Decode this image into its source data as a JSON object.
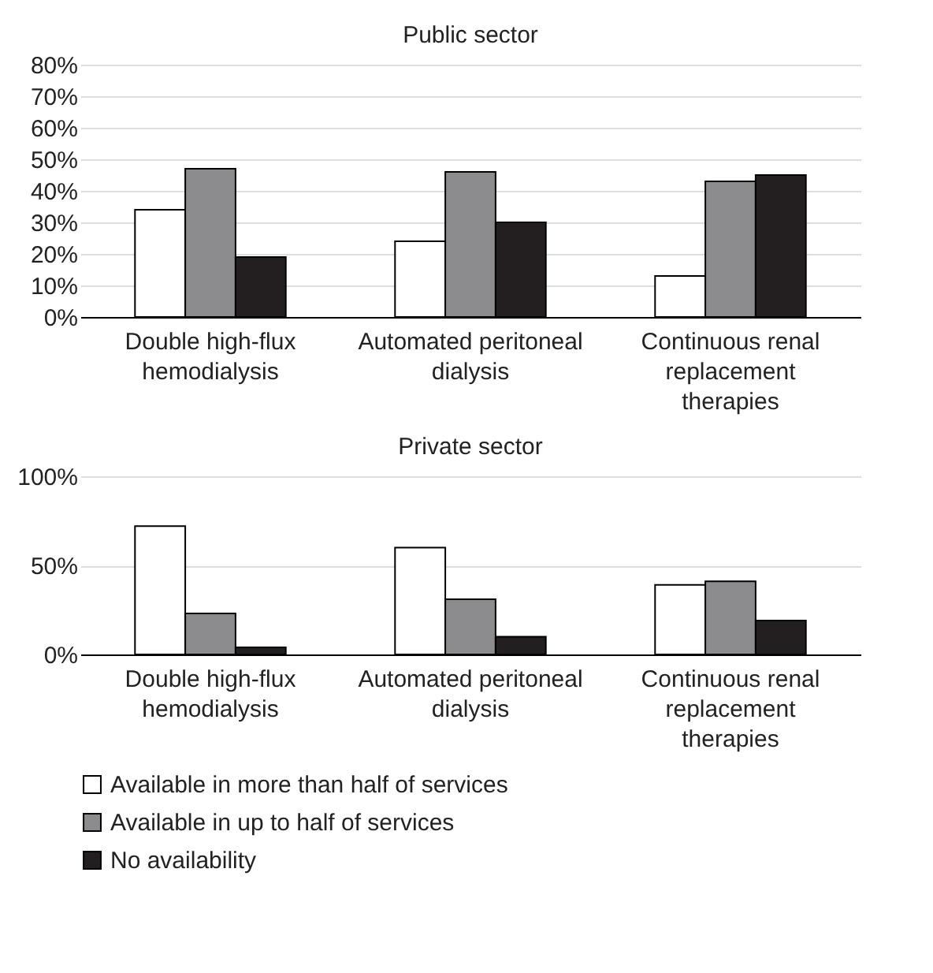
{
  "chart_data": [
    {
      "type": "bar",
      "title": "Public sector",
      "categories": [
        "Double high-flux hemodialysis",
        "Automated peritoneal dialysis",
        "Continuous renal replacement therapies"
      ],
      "series": [
        {
          "name": "Available in more than half of services",
          "color": "#ffffff",
          "values": [
            34,
            24,
            13
          ]
        },
        {
          "name": "Available in up to half of services",
          "color": "#8c8c8e",
          "values": [
            47,
            46,
            43
          ]
        },
        {
          "name": "No availability",
          "color": "#231f20",
          "values": [
            19,
            30,
            45
          ]
        }
      ],
      "ylim": [
        0,
        80
      ],
      "yticks": [
        {
          "value": 0,
          "label": "0%"
        },
        {
          "value": 10,
          "label": "10%"
        },
        {
          "value": 20,
          "label": "20%"
        },
        {
          "value": 30,
          "label": "30%"
        },
        {
          "value": 40,
          "label": "40%"
        },
        {
          "value": 50,
          "label": "50%"
        },
        {
          "value": 60,
          "label": "60%"
        },
        {
          "value": 70,
          "label": "70%"
        },
        {
          "value": 80,
          "label": "80%"
        }
      ],
      "grid": "y",
      "legend": "bottom"
    },
    {
      "type": "bar",
      "title": "Private sector",
      "categories": [
        "Double high-flux hemodialysis",
        "Automated peritoneal dialysis",
        "Continuous renal replacement therapies"
      ],
      "series": [
        {
          "name": "Available in more than half of services",
          "color": "#ffffff",
          "values": [
            72,
            60,
            39
          ]
        },
        {
          "name": "Available in up to half of services",
          "color": "#8c8c8e",
          "values": [
            23,
            31,
            41
          ]
        },
        {
          "name": "No availability",
          "color": "#231f20",
          "values": [
            4,
            10,
            19
          ]
        }
      ],
      "ylim": [
        0,
        100
      ],
      "yticks": [
        {
          "value": 0,
          "label": "0%"
        },
        {
          "value": 50,
          "label": "50%"
        },
        {
          "value": 100,
          "label": "100%"
        }
      ],
      "grid": "y",
      "legend": "bottom"
    }
  ]
}
